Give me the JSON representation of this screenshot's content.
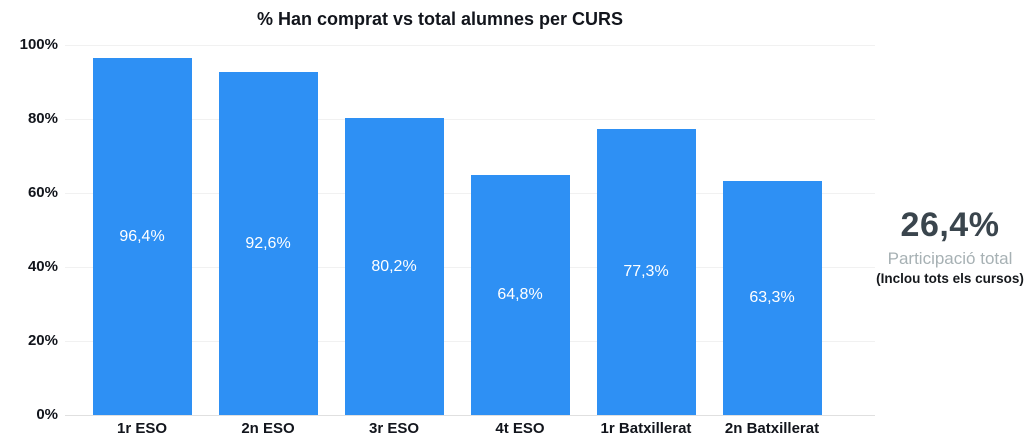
{
  "chart_data": {
    "type": "bar",
    "title": "% Han comprat vs total alumnes per CURS",
    "categories": [
      "1r ESO",
      "2n ESO",
      "3r ESO",
      "4t ESO",
      "1r Batxillerat",
      "2n Batxillerat"
    ],
    "values": [
      96.4,
      92.6,
      80.2,
      64.8,
      77.3,
      63.3
    ],
    "value_labels": [
      "96,4%",
      "92,6%",
      "80,2%",
      "64,8%",
      "77,3%",
      "63,3%"
    ],
    "xlabel": "",
    "ylabel": "",
    "ylim": [
      0,
      100
    ],
    "y_ticks": [
      {
        "value": 0,
        "label": "0%"
      },
      {
        "value": 20,
        "label": "20%"
      },
      {
        "value": 40,
        "label": "40%"
      },
      {
        "value": 60,
        "label": "60%"
      },
      {
        "value": 80,
        "label": "80%"
      },
      {
        "value": 100,
        "label": "100%"
      }
    ],
    "grid": "horizontal",
    "legend": "none",
    "bar_color": "#2E90F4",
    "bar_label_color": "#ffffff"
  },
  "annotation": {
    "total_value": "26,4%",
    "caption": "Participació total",
    "subcaption": "(Inclou tots els cursos)",
    "value_color": "#3A454D",
    "caption_color": "#A7B1B4",
    "subcaption_color": "#16191D"
  }
}
